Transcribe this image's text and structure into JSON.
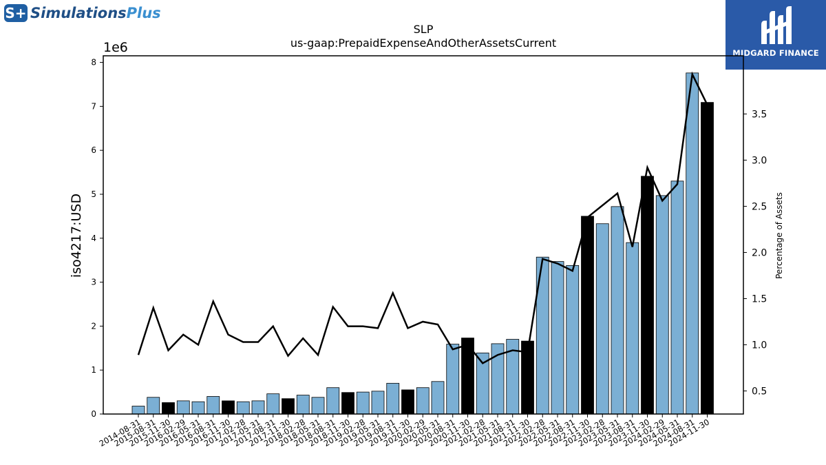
{
  "logo": {
    "mark": "S+",
    "name_part1": "Simulations",
    "name_part2": "Plus"
  },
  "brand": {
    "name": "MIDGARD FINANCE"
  },
  "chart_data": {
    "type": "bar",
    "title": "SLP",
    "subtitle": "us-gaap:PrepaidExpenseAndOtherAssetsCurrent",
    "ylabel": "iso4217:USD",
    "y_multiplier": "1e6",
    "y2label": "Percentage of Assets",
    "ylim": [
      0,
      8.15
    ],
    "y2lim": [
      0.25,
      4.13
    ],
    "yticks": [
      0,
      1,
      2,
      3,
      4,
      5,
      6,
      7,
      8
    ],
    "y2ticks": [
      0.5,
      1.0,
      1.5,
      2.0,
      2.5,
      3.0,
      3.5
    ],
    "categories": [
      "2014-08-31",
      "2015-08-31",
      "2015-11-30",
      "2016-02-29",
      "2016-05-31",
      "2016-08-31",
      "2016-11-30",
      "2017-02-28",
      "2017-05-31",
      "2017-08-31",
      "2017-11-30",
      "2018-02-28",
      "2018-05-31",
      "2018-08-31",
      "2018-11-30",
      "2019-02-28",
      "2019-05-31",
      "2019-08-31",
      "2019-11-30",
      "2020-02-29",
      "2020-05-31",
      "2020-08-31",
      "2020-11-30",
      "2021-02-28",
      "2021-05-31",
      "2021-08-31",
      "2021-11-30",
      "2022-02-28",
      "2022-05-31",
      "2022-08-31",
      "2022-11-30",
      "2023-02-28",
      "2023-05-31",
      "2023-08-31",
      "2023-11-30",
      "2024-02-29",
      "2024-05-31",
      "2024-08-31",
      "2024-11-30"
    ],
    "series": [
      {
        "values": [
          0.18,
          0.38,
          0.26,
          0.3,
          0.28,
          0.4,
          0.3,
          0.28,
          0.3,
          0.46,
          0.35,
          0.43,
          0.38,
          0.6,
          0.49,
          0.5,
          0.52,
          0.7,
          0.55,
          0.6,
          0.74,
          1.59,
          1.73,
          1.39,
          1.6,
          1.7,
          1.66,
          3.57,
          3.47,
          3.38,
          4.5,
          4.33,
          4.72,
          3.9,
          5.41,
          4.97,
          5.3,
          7.76,
          7.09
        ],
        "highlight": [
          false,
          false,
          true,
          false,
          false,
          false,
          true,
          false,
          false,
          false,
          true,
          false,
          false,
          false,
          true,
          false,
          false,
          false,
          true,
          false,
          false,
          false,
          true,
          false,
          false,
          false,
          true,
          false,
          false,
          false,
          true,
          false,
          false,
          false,
          true,
          false,
          false,
          false,
          true
        ],
        "color": "#7bafd4",
        "highlight_color": "#000000"
      },
      {
        "type": "line",
        "axis": "right",
        "color": "#000000",
        "values": [
          0.89,
          1.4,
          0.94,
          1.11,
          1.0,
          1.47,
          1.11,
          1.03,
          1.03,
          1.2,
          0.88,
          1.07,
          0.89,
          1.41,
          1.2,
          1.2,
          1.18,
          1.56,
          1.18,
          1.25,
          1.22,
          0.95,
          1.0,
          0.8,
          0.89,
          0.94,
          0.92,
          1.93,
          1.88,
          1.8,
          2.38,
          2.51,
          2.64,
          2.06,
          2.92,
          2.56,
          2.74,
          3.93,
          3.6
        ]
      }
    ]
  }
}
